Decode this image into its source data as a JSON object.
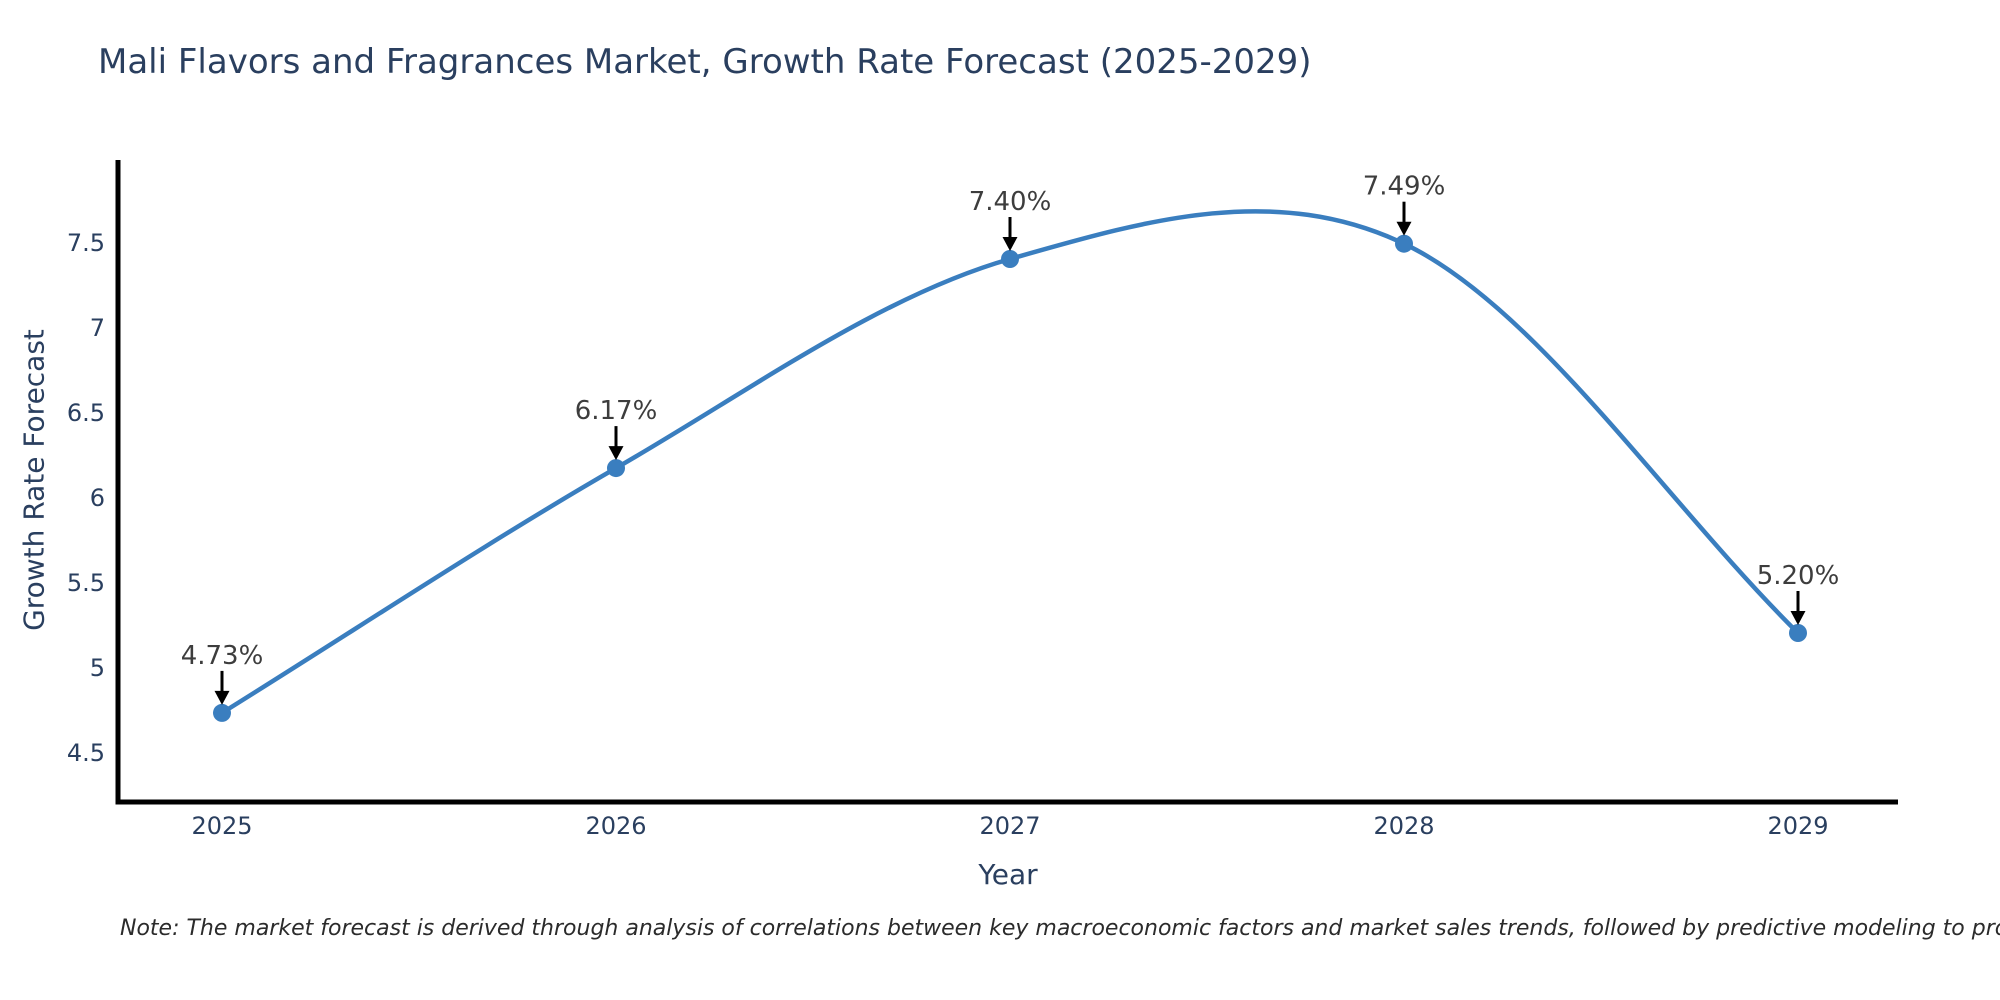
{
  "title": "Mali Flavors and Fragrances Market, Growth Rate Forecast (2025-2029)",
  "note": "Note: The market forecast is derived through analysis of correlations between key macroeconomic factors and market sales trends, followed by predictive modeling to project future sales.",
  "chart_data": {
    "type": "line",
    "title": "Mali Flavors and Fragrances Market, Growth Rate Forecast (2025-2029)",
    "xlabel": "Year",
    "ylabel": "Growth Rate Forecast",
    "x": [
      2025,
      2026,
      2027,
      2028,
      2029
    ],
    "series": [
      {
        "name": "Growth Rate Forecast",
        "values": [
          4.73,
          6.17,
          7.4,
          7.49,
          5.2
        ]
      }
    ],
    "point_labels": [
      "4.73%",
      "6.17%",
      "7.40%",
      "7.49%",
      "5.20%"
    ],
    "yticks": [
      4.5,
      5,
      5.5,
      6,
      6.5,
      7,
      7.5
    ],
    "ylim": [
      4.2,
      7.97
    ],
    "line_shape": "spline",
    "grid": false,
    "legend": "none",
    "colors": {
      "line": "#3a7ebf",
      "marker": "#3a7ebf",
      "annotation_text": "#3d3d3d",
      "arrow": "#000000",
      "axis_line": "#000000",
      "tick_text": "#2a3f5f",
      "title_text": "#2a3f5f",
      "background": "#ffffff"
    }
  }
}
